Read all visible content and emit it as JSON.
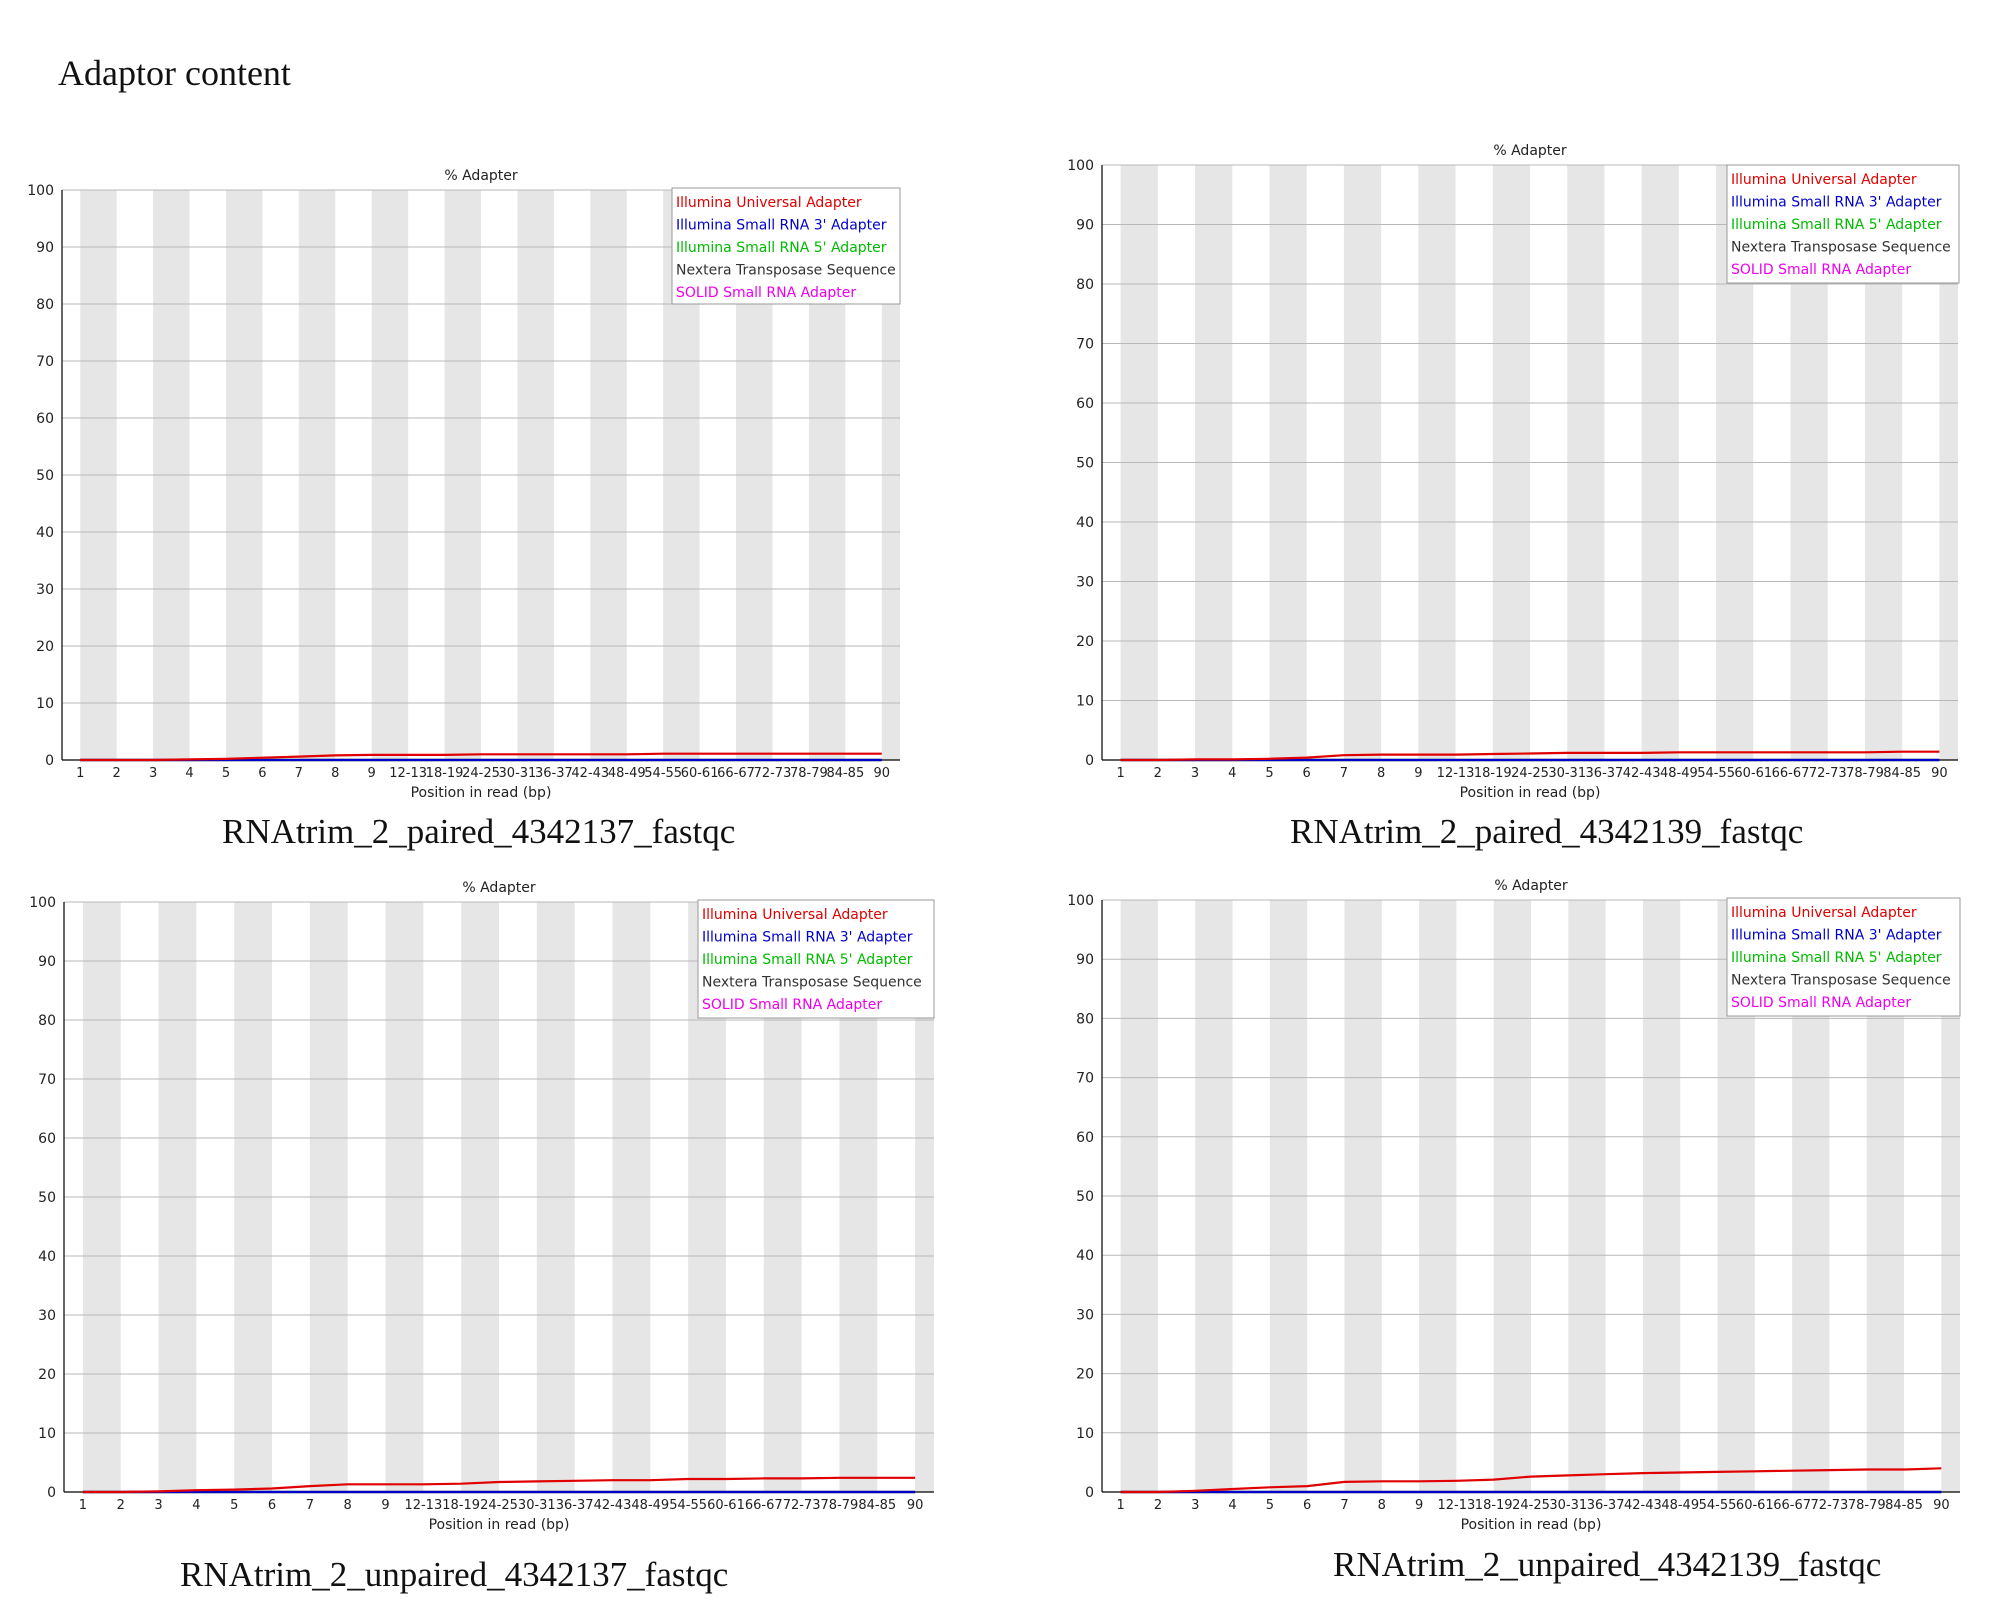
{
  "page": {
    "title": "Adaptor content"
  },
  "common": {
    "chart_title": "% Adapter",
    "xlabel": "Position in read (bp)",
    "ylim": [
      0,
      100
    ],
    "yticks": [
      0,
      10,
      20,
      30,
      40,
      50,
      60,
      70,
      80,
      90,
      100
    ],
    "categories": [
      "1",
      "2",
      "3",
      "4",
      "5",
      "6",
      "7",
      "8",
      "9",
      "12-13",
      "18-19",
      "24-25",
      "30-31",
      "36-37",
      "42-43",
      "48-49",
      "54-55",
      "60-61",
      "66-67",
      "72-73",
      "78-79",
      "84-85",
      "90"
    ],
    "legend": [
      {
        "name": "Illumina Universal Adapter",
        "color": "#e00000"
      },
      {
        "name": "Illumina Small RNA 3' Adapter",
        "color": "#0000cc"
      },
      {
        "name": "Illumina Small RNA 5' Adapter",
        "color": "#00bb00"
      },
      {
        "name": "Nextera Transposase Sequence",
        "color": "#333333"
      },
      {
        "name": "SOLID Small RNA Adapter",
        "color": "#ee00ee"
      }
    ],
    "stripe_color": "#e6e6e6",
    "grid": true,
    "legend_placement": "top-right"
  },
  "chart_data": [
    {
      "type": "line",
      "caption": "RNAtrim_2_paired_4342137_fastqc",
      "title": "% Adapter",
      "xlabel": "Position in read (bp)",
      "ylabel": "",
      "ylim": [
        0,
        100
      ],
      "legend": "top-right",
      "series": [
        {
          "name": "Illumina Universal Adapter",
          "values": [
            0,
            0,
            0,
            0.1,
            0.2,
            0.4,
            0.6,
            0.8,
            0.9,
            0.9,
            0.9,
            1.0,
            1.0,
            1.0,
            1.0,
            1.0,
            1.1,
            1.1,
            1.1,
            1.1,
            1.1,
            1.1,
            1.1
          ]
        },
        {
          "name": "Illumina Small RNA 3' Adapter",
          "values": [
            0,
            0,
            0,
            0,
            0,
            0,
            0,
            0,
            0,
            0,
            0,
            0,
            0,
            0,
            0,
            0,
            0,
            0,
            0,
            0,
            0,
            0,
            0
          ]
        },
        {
          "name": "Illumina Small RNA 5' Adapter",
          "values": [
            0,
            0,
            0,
            0,
            0,
            0,
            0,
            0,
            0,
            0,
            0,
            0,
            0,
            0,
            0,
            0,
            0,
            0,
            0,
            0,
            0,
            0,
            0
          ]
        },
        {
          "name": "Nextera Transposase Sequence",
          "values": [
            0,
            0,
            0,
            0,
            0,
            0,
            0,
            0,
            0,
            0,
            0,
            0,
            0,
            0,
            0,
            0,
            0,
            0,
            0,
            0,
            0,
            0,
            0
          ]
        },
        {
          "name": "SOLID Small RNA Adapter",
          "values": [
            0,
            0,
            0,
            0,
            0,
            0,
            0,
            0,
            0,
            0,
            0,
            0,
            0,
            0,
            0,
            0,
            0,
            0,
            0,
            0,
            0,
            0,
            0
          ]
        }
      ]
    },
    {
      "type": "line",
      "caption": "RNAtrim_2_paired_4342139_fastqc",
      "title": "% Adapter",
      "xlabel": "Position in read (bp)",
      "ylabel": "",
      "ylim": [
        0,
        100
      ],
      "legend": "top-right",
      "series": [
        {
          "name": "Illumina Universal Adapter",
          "values": [
            0,
            0,
            0.1,
            0.1,
            0.2,
            0.4,
            0.8,
            0.9,
            0.9,
            0.9,
            1.0,
            1.1,
            1.2,
            1.2,
            1.2,
            1.3,
            1.3,
            1.3,
            1.3,
            1.3,
            1.3,
            1.4,
            1.4
          ]
        },
        {
          "name": "Illumina Small RNA 3' Adapter",
          "values": [
            0,
            0,
            0,
            0,
            0,
            0,
            0,
            0,
            0,
            0,
            0,
            0,
            0,
            0,
            0,
            0,
            0,
            0,
            0,
            0,
            0,
            0,
            0
          ]
        },
        {
          "name": "Illumina Small RNA 5' Adapter",
          "values": [
            0,
            0,
            0,
            0,
            0,
            0,
            0,
            0,
            0,
            0,
            0,
            0,
            0,
            0,
            0,
            0,
            0,
            0,
            0,
            0,
            0,
            0,
            0
          ]
        },
        {
          "name": "Nextera Transposase Sequence",
          "values": [
            0,
            0,
            0,
            0,
            0,
            0,
            0,
            0,
            0,
            0,
            0,
            0,
            0,
            0,
            0,
            0,
            0,
            0,
            0,
            0,
            0,
            0,
            0
          ]
        },
        {
          "name": "SOLID Small RNA Adapter",
          "values": [
            0,
            0,
            0,
            0,
            0,
            0,
            0,
            0,
            0,
            0,
            0,
            0,
            0,
            0,
            0,
            0,
            0,
            0,
            0,
            0,
            0,
            0,
            0
          ]
        }
      ]
    },
    {
      "type": "line",
      "caption": "RNAtrim_2_unpaired_4342137_fastqc",
      "title": "% Adapter",
      "xlabel": "Position in read (bp)",
      "ylabel": "",
      "ylim": [
        0,
        100
      ],
      "legend": "top-right",
      "series": [
        {
          "name": "Illumina Universal Adapter",
          "values": [
            0,
            0,
            0.1,
            0.3,
            0.4,
            0.6,
            1.0,
            1.3,
            1.3,
            1.3,
            1.4,
            1.7,
            1.8,
            1.9,
            2.0,
            2.0,
            2.2,
            2.2,
            2.3,
            2.3,
            2.4,
            2.4,
            2.4
          ]
        },
        {
          "name": "Illumina Small RNA 3' Adapter",
          "values": [
            0,
            0,
            0,
            0,
            0,
            0,
            0,
            0,
            0,
            0,
            0,
            0,
            0,
            0,
            0,
            0,
            0,
            0,
            0,
            0,
            0,
            0,
            0
          ]
        },
        {
          "name": "Illumina Small RNA 5' Adapter",
          "values": [
            0,
            0,
            0,
            0,
            0,
            0,
            0,
            0,
            0,
            0,
            0,
            0,
            0,
            0,
            0,
            0,
            0,
            0,
            0,
            0,
            0,
            0,
            0
          ]
        },
        {
          "name": "Nextera Transposase Sequence",
          "values": [
            0,
            0,
            0,
            0,
            0,
            0,
            0,
            0,
            0,
            0,
            0,
            0,
            0,
            0,
            0,
            0,
            0,
            0,
            0,
            0,
            0,
            0,
            0
          ]
        },
        {
          "name": "SOLID Small RNA Adapter",
          "values": [
            0,
            0,
            0,
            0,
            0,
            0,
            0,
            0,
            0,
            0,
            0,
            0,
            0,
            0,
            0,
            0,
            0,
            0,
            0,
            0,
            0,
            0,
            0
          ]
        }
      ]
    },
    {
      "type": "line",
      "caption": "RNAtrim_2_unpaired_4342139_fastqc",
      "title": "% Adapter",
      "xlabel": "Position in read (bp)",
      "ylabel": "",
      "ylim": [
        0,
        100
      ],
      "legend": "top-right",
      "series": [
        {
          "name": "Illumina Universal Adapter",
          "values": [
            0,
            0,
            0.2,
            0.5,
            0.8,
            1.0,
            1.7,
            1.8,
            1.8,
            1.9,
            2.1,
            2.6,
            2.8,
            3.0,
            3.2,
            3.3,
            3.4,
            3.5,
            3.6,
            3.7,
            3.8,
            3.8,
            4.0
          ]
        },
        {
          "name": "Illumina Small RNA 3' Adapter",
          "values": [
            0,
            0,
            0,
            0,
            0,
            0,
            0,
            0,
            0,
            0,
            0,
            0,
            0,
            0,
            0,
            0,
            0,
            0,
            0,
            0,
            0,
            0,
            0
          ]
        },
        {
          "name": "Illumina Small RNA 5' Adapter",
          "values": [
            0,
            0,
            0,
            0,
            0,
            0,
            0,
            0,
            0,
            0,
            0,
            0,
            0,
            0,
            0,
            0,
            0,
            0,
            0,
            0,
            0,
            0,
            0
          ]
        },
        {
          "name": "Nextera Transposase Sequence",
          "values": [
            0,
            0,
            0,
            0,
            0,
            0,
            0,
            0,
            0,
            0,
            0,
            0,
            0,
            0,
            0,
            0,
            0,
            0,
            0,
            0,
            0,
            0,
            0
          ]
        },
        {
          "name": "SOLID Small RNA Adapter",
          "values": [
            0,
            0,
            0,
            0,
            0,
            0,
            0,
            0,
            0,
            0,
            0,
            0,
            0,
            0,
            0,
            0,
            0,
            0,
            0,
            0,
            0,
            0,
            0
          ]
        }
      ]
    }
  ]
}
